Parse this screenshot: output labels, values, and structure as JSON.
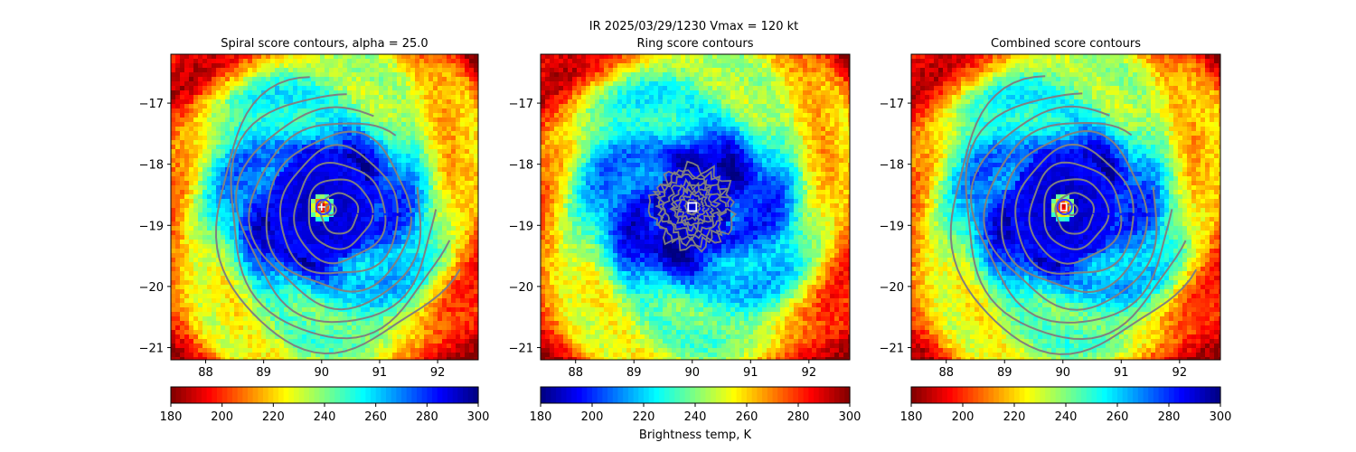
{
  "figure": {
    "suptitle": "IR  2025/03/29/1230    Vmax = 120 kt",
    "colorbar_label": "Brightness temp, K",
    "colormap": "jet",
    "contour_color": "#808080"
  },
  "chart_data": [
    {
      "type": "heatmap",
      "title": "Spiral score contours, alpha = 25.0",
      "xlim": [
        87.4,
        92.7
      ],
      "ylim": [
        -21.2,
        -16.2
      ],
      "xticks": [
        88,
        89,
        90,
        91,
        92
      ],
      "yticks": [
        -17,
        -18,
        -19,
        -20,
        -21
      ],
      "xtick_labels": [
        "88",
        "89",
        "90",
        "91",
        "92"
      ],
      "ytick_labels": [
        "−17",
        "−18",
        "−19",
        "−20",
        "−21"
      ],
      "eye_center": [
        90.0,
        -18.7
      ],
      "contour_center": [
        90.3,
        -18.8
      ],
      "contour_type": "spiral",
      "colorbar": {
        "vmin": 180,
        "vmax": 300,
        "ticks": [
          180,
          200,
          220,
          240,
          260,
          280,
          300
        ],
        "labels": [
          "180",
          "200",
          "220",
          "240",
          "260",
          "280",
          "300"
        ],
        "reversed": true
      }
    },
    {
      "type": "heatmap",
      "title": "Ring score contours",
      "xlim": [
        87.4,
        92.7
      ],
      "ylim": [
        -21.2,
        -16.2
      ],
      "xticks": [
        88,
        89,
        90,
        91,
        92
      ],
      "yticks": [
        -17,
        -18,
        -19,
        -20,
        -21
      ],
      "xtick_labels": [
        "88",
        "89",
        "90",
        "91",
        "92"
      ],
      "ytick_labels": [
        "−17",
        "−18",
        "−19",
        "−20",
        "−21"
      ],
      "eye_center": [
        90.0,
        -18.7
      ],
      "contour_center": [
        90.0,
        -18.7
      ],
      "contour_type": "ring",
      "colorbar": {
        "vmin": 180,
        "vmax": 300,
        "ticks": [
          180,
          200,
          220,
          240,
          260,
          280,
          300
        ],
        "labels": [
          "180",
          "200",
          "220",
          "240",
          "260",
          "280",
          "300"
        ],
        "reversed": false
      }
    },
    {
      "type": "heatmap",
      "title": "Combined score contours",
      "xlim": [
        87.4,
        92.7
      ],
      "ylim": [
        -21.2,
        -16.2
      ],
      "xticks": [
        88,
        89,
        90,
        91,
        92
      ],
      "yticks": [
        -17,
        -18,
        -19,
        -20,
        -21
      ],
      "xtick_labels": [
        "88",
        "89",
        "90",
        "91",
        "92"
      ],
      "ytick_labels": [
        "−17",
        "−18",
        "−19",
        "−20",
        "−21"
      ],
      "eye_center": [
        90.0,
        -18.7
      ],
      "contour_center": [
        90.2,
        -18.8
      ],
      "contour_type": "spiral",
      "colorbar": {
        "vmin": 180,
        "vmax": 300,
        "ticks": [
          180,
          200,
          220,
          240,
          260,
          280,
          300
        ],
        "labels": [
          "180",
          "200",
          "220",
          "240",
          "260",
          "280",
          "300"
        ],
        "reversed": true
      }
    }
  ]
}
